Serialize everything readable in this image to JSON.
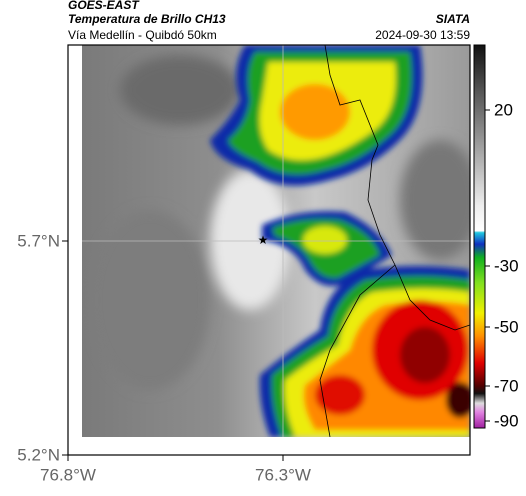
{
  "header": {
    "source": "GOES-EAST",
    "product": "Temperatura de Brillo CH13",
    "region": "Vía Medellín - Quibdó 50km",
    "organization": "SIATA",
    "timestamp": "2024-09-30 13:59"
  },
  "map": {
    "lat_ticks": [
      {
        "value": 5.7,
        "label": "5.7°N"
      },
      {
        "value": 5.2,
        "label": "5.2°N"
      }
    ],
    "lon_ticks": [
      {
        "value": -76.8,
        "label": "76.8°W"
      },
      {
        "value": -76.3,
        "label": "76.3°W"
      }
    ]
  },
  "colorbar": {
    "ticks": [
      20,
      -30,
      -50,
      -70,
      -90
    ]
  }
}
